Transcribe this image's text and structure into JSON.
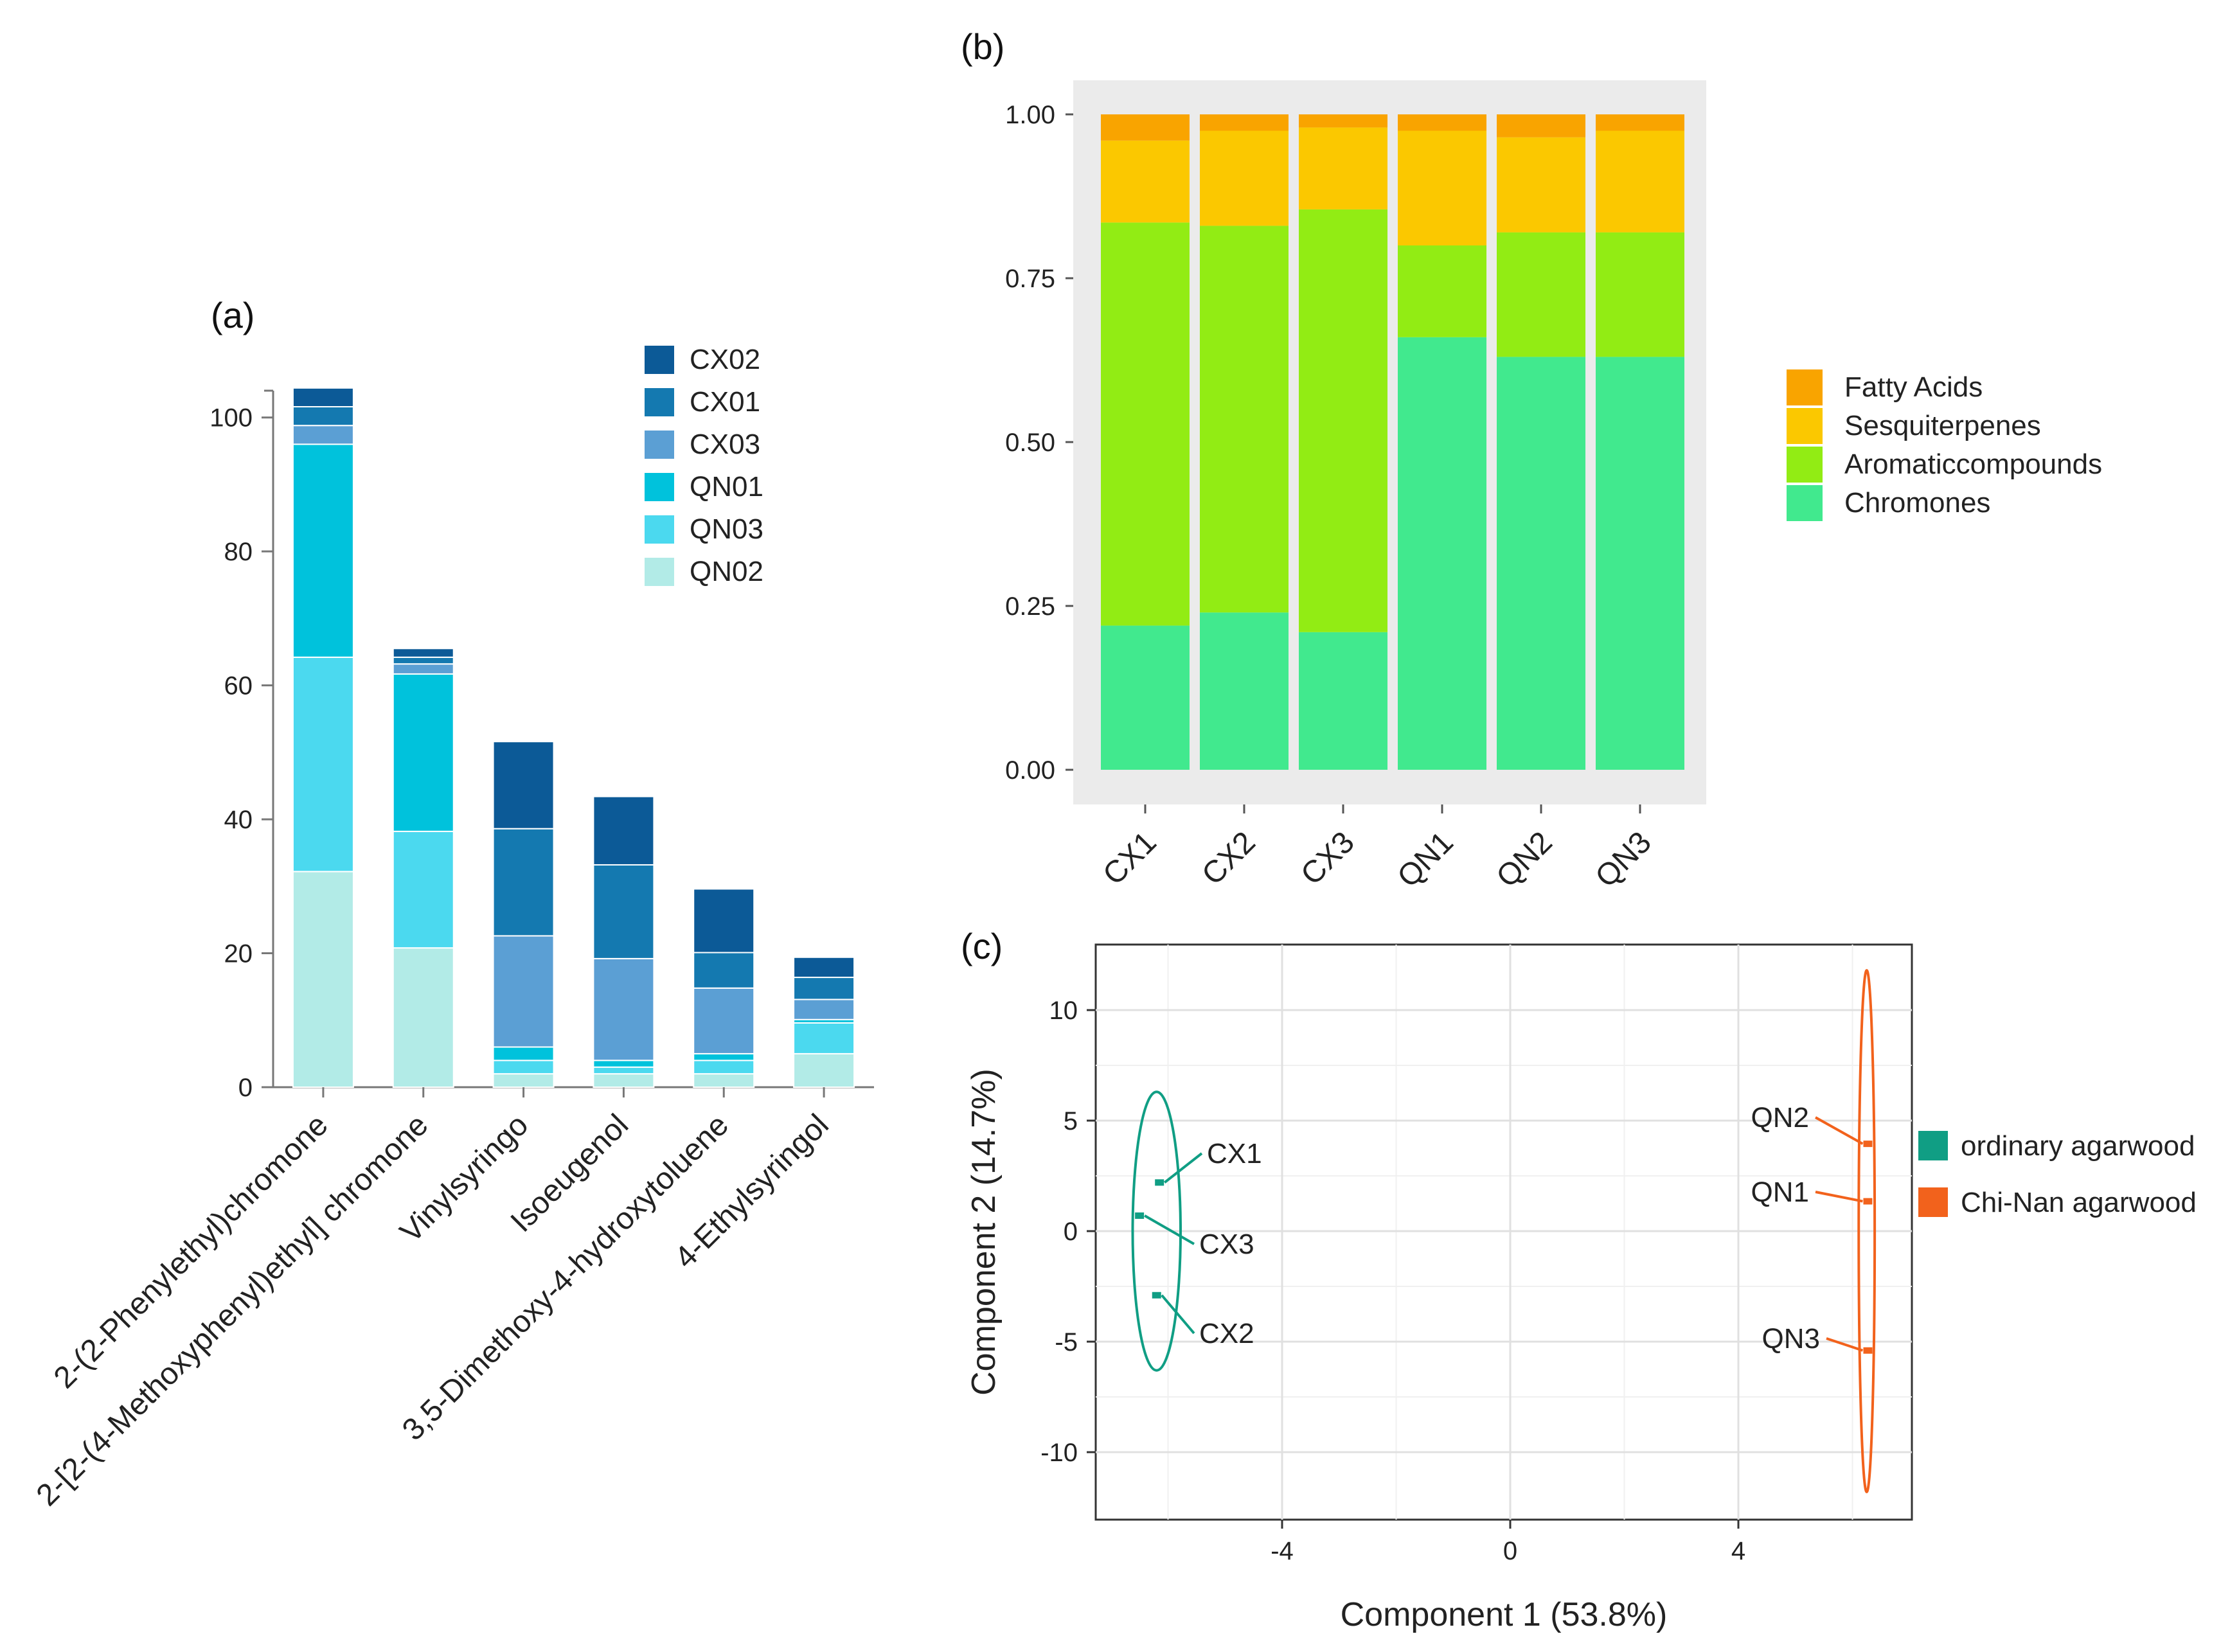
{
  "chart_data": [
    {
      "panel": "(a)",
      "type": "bar",
      "stacked": true,
      "categories": [
        "2-(2-Phenylethyl)chromone",
        "2-[2-(4-Methoxyphenyl)ethyl] chromone",
        "Vinylsyringo",
        "Isoeugenol",
        "3,5-Dimethoxy-4-hydroxytoluene",
        "4-Ethylsyringol"
      ],
      "series": [
        {
          "name": "QN02",
          "color": "#b2ebe7",
          "values": [
            32.2,
            20.8,
            2.0,
            2.0,
            2.0,
            5.0
          ]
        },
        {
          "name": "QN03",
          "color": "#4bd9ef",
          "values": [
            32.0,
            17.4,
            2.0,
            1.0,
            2.0,
            4.6
          ]
        },
        {
          "name": "QN01",
          "color": "#00c2dc",
          "values": [
            31.8,
            23.5,
            2.0,
            1.0,
            1.0,
            0.5
          ]
        },
        {
          "name": "CX03",
          "color": "#5b9fd4",
          "values": [
            2.8,
            1.5,
            16.6,
            15.2,
            9.8,
            3.0
          ]
        },
        {
          "name": "CX01",
          "color": "#1479b0",
          "values": [
            2.8,
            1.0,
            16.0,
            14.0,
            5.3,
            3.3
          ]
        },
        {
          "name": "CX02",
          "color": "#0c5a97",
          "values": [
            2.8,
            1.3,
            13.0,
            10.2,
            9.5,
            3.0
          ]
        }
      ],
      "legend_order": [
        "CX02",
        "CX01",
        "CX03",
        "QN01",
        "QN03",
        "QN02"
      ],
      "ylim": [
        0,
        104
      ],
      "yticks": [
        0,
        20,
        40,
        60,
        80,
        100
      ],
      "title": "",
      "xlabel": "",
      "ylabel": ""
    },
    {
      "panel": "(b)",
      "type": "bar",
      "stacked": true,
      "categories": [
        "CX1",
        "CX2",
        "CX3",
        "QN1",
        "QN2",
        "QN3"
      ],
      "series": [
        {
          "name": "Chromones",
          "color": "#41e98e",
          "values": [
            0.22,
            0.24,
            0.21,
            0.66,
            0.63,
            0.63
          ]
        },
        {
          "name": "Aromaticcompounds",
          "color": "#92ec14",
          "values": [
            0.615,
            0.59,
            0.645,
            0.14,
            0.19,
            0.19
          ]
        },
        {
          "name": "Sesquiterpenes",
          "color": "#fbc800",
          "values": [
            0.125,
            0.145,
            0.125,
            0.175,
            0.145,
            0.155
          ]
        },
        {
          "name": "Fatty Acids",
          "color": "#f9a400",
          "values": [
            0.04,
            0.025,
            0.02,
            0.025,
            0.035,
            0.025
          ]
        }
      ],
      "legend_order": [
        "Fatty Acids",
        "Sesquiterpenes",
        "Aromaticcompounds",
        "Chromones"
      ],
      "ylim": [
        0,
        1.0
      ],
      "yticks": [
        "0.00",
        "0.25",
        "0.50",
        "0.75",
        "1.00"
      ],
      "title": "",
      "xlabel": "",
      "ylabel": ""
    },
    {
      "panel": "(c)",
      "type": "scatter",
      "xlabel": "Component 1 (53.8%)",
      "ylabel": "Component 2 (14.7%)",
      "xlim": [
        -7.3,
        7.0
      ],
      "ylim": [
        -13.0,
        13.0
      ],
      "xticks": [
        "-4",
        "0",
        "4"
      ],
      "yticks": [
        "-10",
        "-5",
        "0",
        "5",
        "10"
      ],
      "groups": [
        {
          "name": "ordinary agarwood",
          "color": "#109e84",
          "ellipse": {
            "cx": -6.2,
            "cy": 0.0,
            "rx": 0.42,
            "ry": 6.3
          },
          "points": [
            {
              "label": "CX1",
              "x": -6.15,
              "y": 2.2
            },
            {
              "label": "CX3",
              "x": -6.5,
              "y": 0.7
            },
            {
              "label": "CX2",
              "x": -6.2,
              "y": -2.9
            }
          ]
        },
        {
          "name": "Chi-Nan agarwood",
          "color": "#f2621c",
          "ellipse": {
            "cx": 6.25,
            "cy": 0.0,
            "rx": 0.14,
            "ry": 11.8
          },
          "points": [
            {
              "label": "QN2",
              "x": 6.27,
              "y": 3.95
            },
            {
              "label": "QN1",
              "x": 6.27,
              "y": 1.35
            },
            {
              "label": "QN3",
              "x": 6.27,
              "y": -5.4
            }
          ]
        }
      ]
    }
  ],
  "labels": {
    "panel_a": "(a)",
    "panel_b": "(b)",
    "panel_c": "(c)"
  }
}
